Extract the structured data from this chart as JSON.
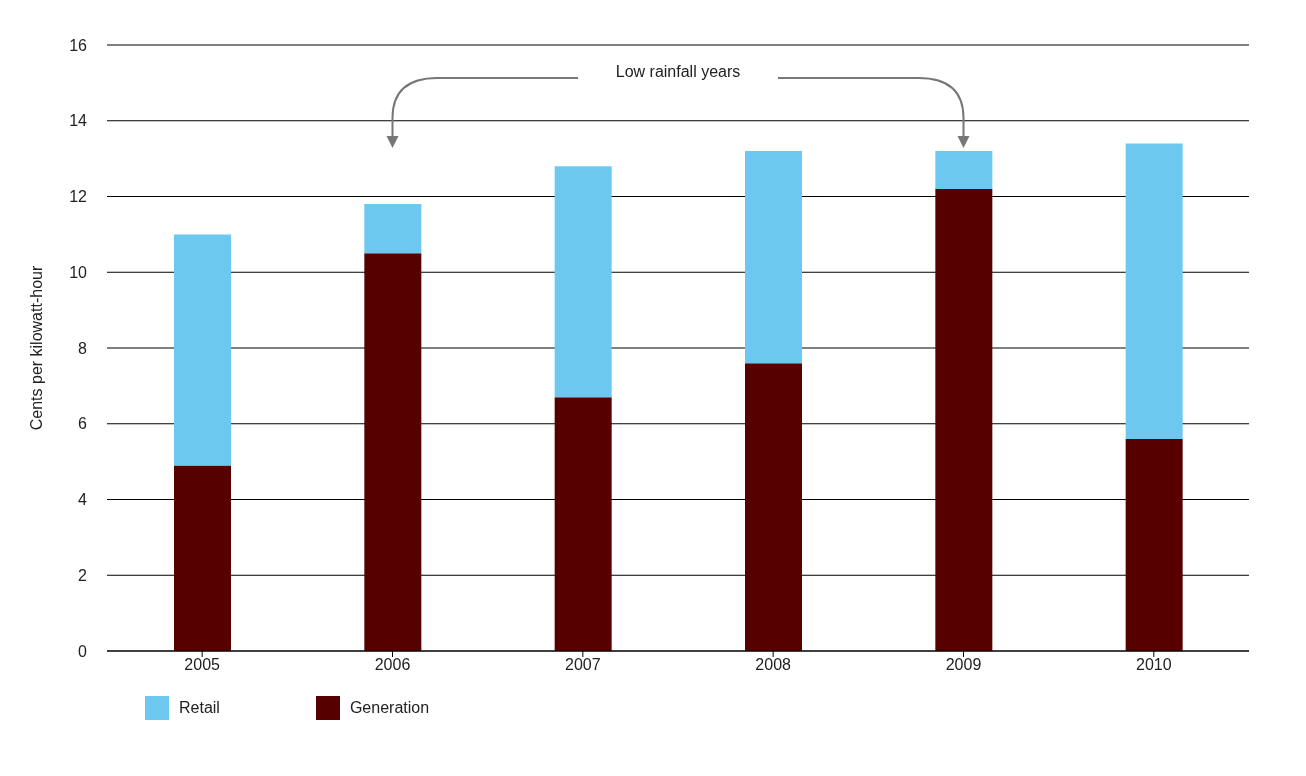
{
  "chart_data": {
    "type": "bar",
    "stacked": true,
    "ylabel": "Cents per kilowatt-hour",
    "categories": [
      "2005",
      "2006",
      "2007",
      "2008",
      "2009",
      "2010"
    ],
    "series": [
      {
        "name": "Generation",
        "color": "#560000",
        "values": [
          4.9,
          10.5,
          6.7,
          7.6,
          12.2,
          5.6
        ]
      },
      {
        "name": "Retail",
        "color": "#6dc8f0",
        "values": [
          6.1,
          1.3,
          6.1,
          5.6,
          1.0,
          7.8
        ]
      }
    ],
    "ylim": [
      0,
      16
    ],
    "yticks": [
      0,
      2,
      4,
      6,
      8,
      10,
      12,
      14,
      16
    ],
    "grid": "y",
    "legend": "bottom left",
    "annotations": [
      "Low rainfall years"
    ]
  }
}
